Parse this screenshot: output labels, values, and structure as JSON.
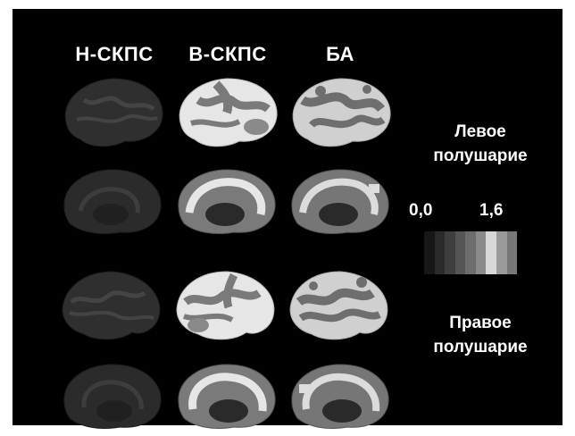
{
  "columns": [
    "Н-СКПС",
    "В-СКПС",
    "БА"
  ],
  "hemispheres": {
    "left": [
      "Левое",
      "полушарие"
    ],
    "right": [
      "Правое",
      "полушарие"
    ]
  },
  "colorbar": {
    "min_label": "0,0",
    "max_label": "1,6",
    "min": 0.0,
    "max": 1.6,
    "steps": [
      "#161616",
      "#2a2a2a",
      "#3e3e3e",
      "#555555",
      "#6c6c6c",
      "#8a8a8a",
      "#d8d8d8",
      "#9a9a9a",
      "#777777"
    ]
  },
  "colors": {
    "background": "#000000",
    "brain_dim": "#2f2f2f",
    "brain_medium": "#7a7a7a",
    "brain_bright": "#e6e6e6"
  },
  "brain_grid": {
    "rows": [
      "left-lateral",
      "left-medial",
      "right-lateral",
      "right-medial"
    ],
    "intensity": [
      [
        0.1,
        0.85,
        0.75
      ],
      [
        0.08,
        0.7,
        0.6
      ],
      [
        0.1,
        0.8,
        0.75
      ],
      [
        0.08,
        0.65,
        0.6
      ]
    ]
  }
}
